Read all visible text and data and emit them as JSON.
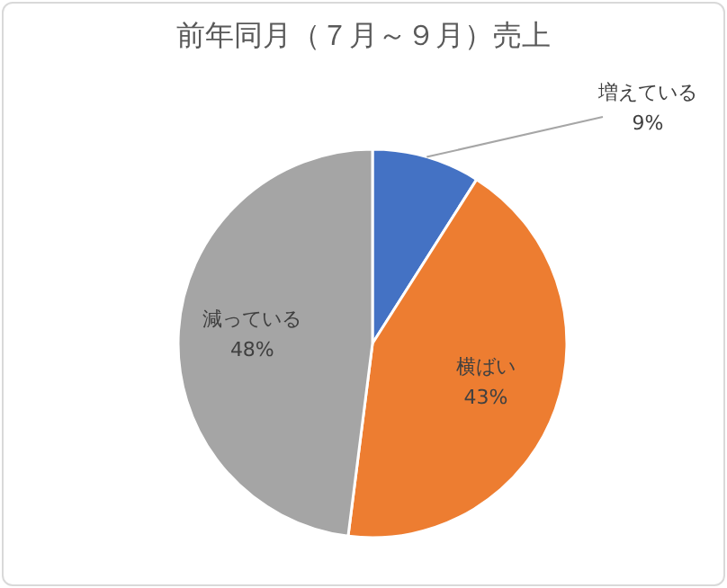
{
  "chart_data": {
    "type": "pie",
    "title": "前年同月（７月～９月）売上",
    "categories": [
      "増えている",
      "横ばい",
      "減っている"
    ],
    "values": [
      9,
      43,
      48
    ],
    "colors": [
      "#4472c4",
      "#ed7d31",
      "#a5a5a5"
    ],
    "value_labels": [
      "9%",
      "43%",
      "48%"
    ]
  }
}
